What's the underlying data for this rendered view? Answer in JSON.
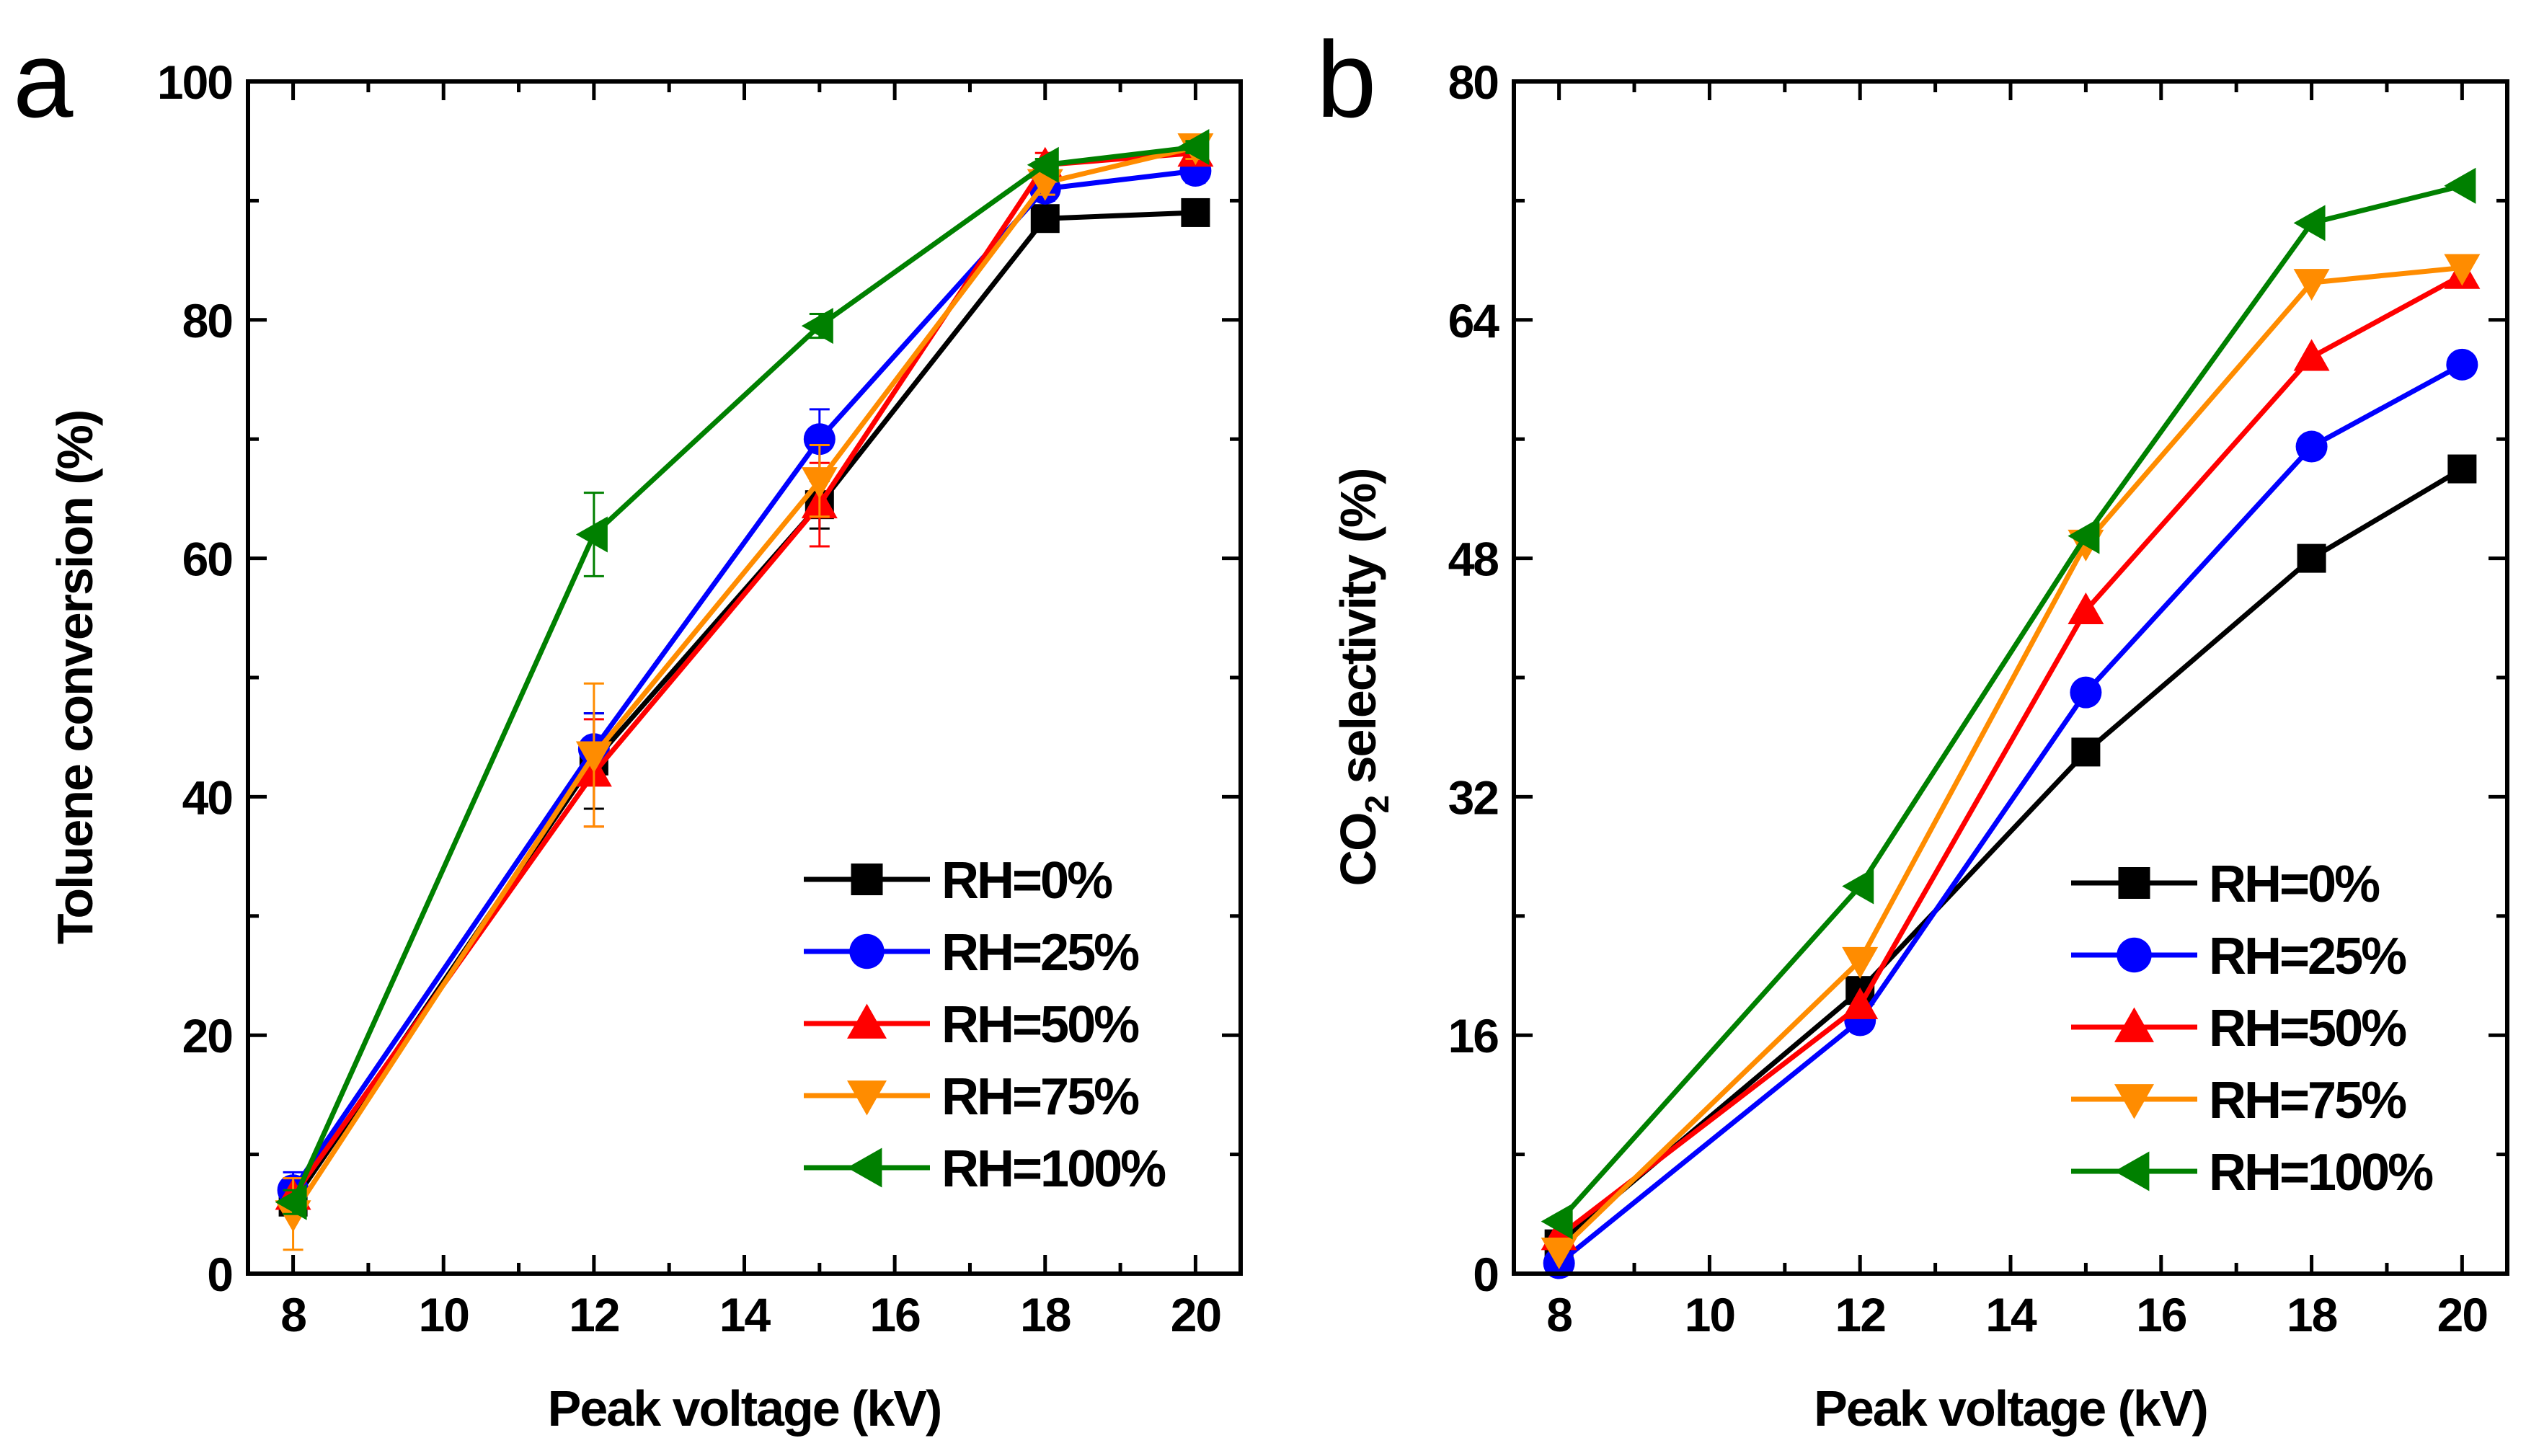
{
  "chart_data": [
    {
      "panel_label": "a",
      "type": "line",
      "xlabel": "Peak voltage (kV)",
      "ylabel": "Toluene conversion (%)",
      "ylabel_parts": [
        "Toluene conversion (%)"
      ],
      "xlim": [
        7.4,
        20.6
      ],
      "ylim": [
        0,
        100
      ],
      "xticks": [
        8,
        10,
        12,
        14,
        16,
        18,
        20
      ],
      "yticks": [
        0,
        20,
        40,
        60,
        80,
        100
      ],
      "x": [
        8,
        12,
        15,
        18,
        20
      ],
      "legend_position": "bottom-right",
      "error_bars": true,
      "series": [
        {
          "name": "RH=0%",
          "label": "RH=0%",
          "color": "#000000",
          "marker": "square",
          "values": [
            6.0,
            43.0,
            64.5,
            88.5,
            89.0
          ],
          "errors": [
            1.0,
            4.0,
            2.0,
            1.0,
            1.0
          ]
        },
        {
          "name": "RH=25%",
          "label": "RH=25%",
          "color": "#0000ff",
          "marker": "circle",
          "values": [
            7.0,
            44.0,
            70.0,
            91.0,
            92.5
          ],
          "errors": [
            1.5,
            3.0,
            2.5,
            1.0,
            1.0
          ]
        },
        {
          "name": "RH=50%",
          "label": "RH=50%",
          "color": "#ff0000",
          "marker": "triangle-up",
          "values": [
            6.5,
            42.0,
            64.5,
            93.0,
            94.0
          ],
          "errors": [
            1.5,
            4.5,
            3.5,
            1.0,
            1.0
          ]
        },
        {
          "name": "RH=75%",
          "label": "RH=75%",
          "color": "#ff8c00",
          "marker": "triangle-down",
          "values": [
            5.0,
            43.5,
            66.5,
            91.5,
            94.5
          ],
          "errors": [
            3.0,
            6.0,
            3.0,
            1.0,
            1.0
          ]
        },
        {
          "name": "RH=100%",
          "label": "RH=100%",
          "color": "#008000",
          "marker": "triangle-left",
          "values": [
            6.0,
            62.0,
            79.5,
            93.0,
            94.5
          ],
          "errors": [
            1.0,
            3.5,
            1.0,
            0.5,
            0.5
          ]
        }
      ]
    },
    {
      "panel_label": "b",
      "type": "line",
      "xlabel": "Peak voltage (kV)",
      "ylabel": "CO2 selectivity (%)",
      "ylabel_parts": [
        "CO",
        "2",
        " selectivity (%)"
      ],
      "xlim": [
        7.4,
        20.6
      ],
      "ylim": [
        0,
        80
      ],
      "xticks": [
        8,
        10,
        12,
        14,
        16,
        18,
        20
      ],
      "yticks": [
        0,
        16,
        32,
        48,
        64,
        80
      ],
      "x": [
        8,
        12,
        15,
        18,
        20
      ],
      "legend_position": "bottom-right",
      "error_bars": false,
      "series": [
        {
          "name": "RH=0%",
          "label": "RH=0%",
          "color": "#000000",
          "marker": "square",
          "values": [
            2.0,
            19.0,
            35.0,
            48.0,
            54.0
          ]
        },
        {
          "name": "RH=25%",
          "label": "RH=25%",
          "color": "#0000ff",
          "marker": "circle",
          "values": [
            0.7,
            17.0,
            39.0,
            55.5,
            61.0
          ]
        },
        {
          "name": "RH=50%",
          "label": "RH=50%",
          "color": "#ff0000",
          "marker": "triangle-up",
          "values": [
            2.5,
            18.0,
            44.5,
            61.5,
            67.0
          ]
        },
        {
          "name": "RH=75%",
          "label": "RH=75%",
          "color": "#ff8c00",
          "marker": "triangle-down",
          "values": [
            1.5,
            21.0,
            49.0,
            66.5,
            67.5
          ]
        },
        {
          "name": "RH=100%",
          "label": "RH=100%",
          "color": "#008000",
          "marker": "triangle-left",
          "values": [
            3.5,
            26.0,
            49.5,
            70.5,
            73.0
          ]
        }
      ]
    }
  ]
}
